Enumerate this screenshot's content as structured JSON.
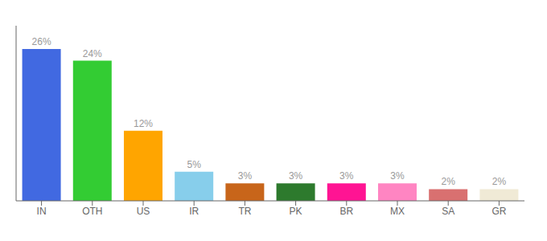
{
  "chart_data": {
    "type": "bar",
    "categories": [
      "IN",
      "OTH",
      "US",
      "IR",
      "TR",
      "PK",
      "BR",
      "MX",
      "SA",
      "GR"
    ],
    "values": [
      26,
      24,
      12,
      5,
      3,
      3,
      3,
      3,
      2,
      2
    ],
    "value_labels": [
      "26%",
      "24%",
      "12%",
      "5%",
      "3%",
      "3%",
      "3%",
      "3%",
      "2%",
      "2%"
    ],
    "colors": [
      "#4169e1",
      "#33cc33",
      "#ffa500",
      "#87ceeb",
      "#c8651a",
      "#2d7a2d",
      "#ff1493",
      "#ff85c2",
      "#d97070",
      "#f0ead6"
    ],
    "ylim": [
      0,
      30
    ],
    "grid": false,
    "data_labels": true,
    "tick_labels": "x"
  }
}
